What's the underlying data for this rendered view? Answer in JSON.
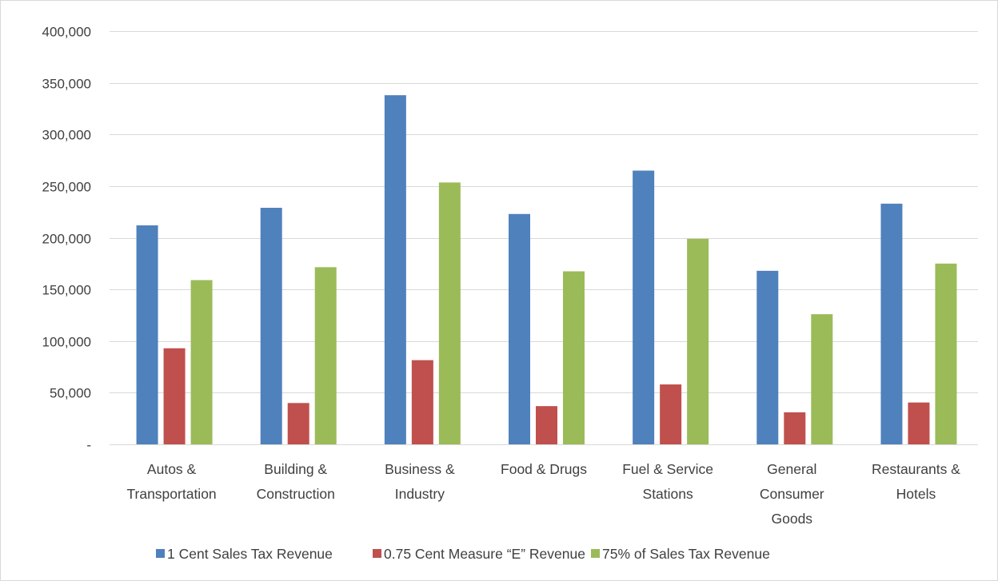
{
  "chart_data": {
    "type": "bar",
    "title": "",
    "xlabel": "",
    "ylabel": "",
    "ylim": [
      0,
      400000
    ],
    "yticks": [
      0,
      50000,
      100000,
      150000,
      200000,
      250000,
      300000,
      350000,
      400000
    ],
    "ytick_labels": [
      "-",
      "50,000",
      "100,000",
      "150,000",
      "200,000",
      "250,000",
      "300,000",
      "350,000",
      "400,000"
    ],
    "grid": true,
    "legend_position": "bottom",
    "categories": [
      "Autos & Transportation",
      "Building & Construction",
      "Business & Industry",
      "Food & Drugs",
      "Fuel & Service Stations",
      "General Consumer Goods",
      "Restaurants & Hotels"
    ],
    "category_label_lines": [
      [
        "Autos &",
        "Transportation"
      ],
      [
        "Building &",
        "Construction"
      ],
      [
        "Business &",
        "Industry"
      ],
      [
        "Food & Drugs"
      ],
      [
        "Fuel & Service",
        "Stations"
      ],
      [
        "General",
        "Consumer",
        "Goods"
      ],
      [
        "Restaurants &",
        "Hotels"
      ]
    ],
    "series": [
      {
        "name": "1 Cent Sales Tax Revenue",
        "color": "#4f81bd",
        "values": [
          212000,
          229000,
          338000,
          223000,
          265000,
          168000,
          233000
        ]
      },
      {
        "name": "0.75 Cent Measure “E” Revenue",
        "color": "#c0504d",
        "values": [
          93000,
          40000,
          81500,
          37000,
          58000,
          31000,
          40500
        ]
      },
      {
        "name": "75% of Sales Tax Revenue",
        "color": "#9bbb59",
        "values": [
          159000,
          171500,
          253500,
          167500,
          199000,
          126000,
          175000
        ]
      }
    ]
  },
  "colors": {
    "gridline": "#d9d9d9",
    "text": "#404040",
    "border": "#d9d9d9"
  }
}
